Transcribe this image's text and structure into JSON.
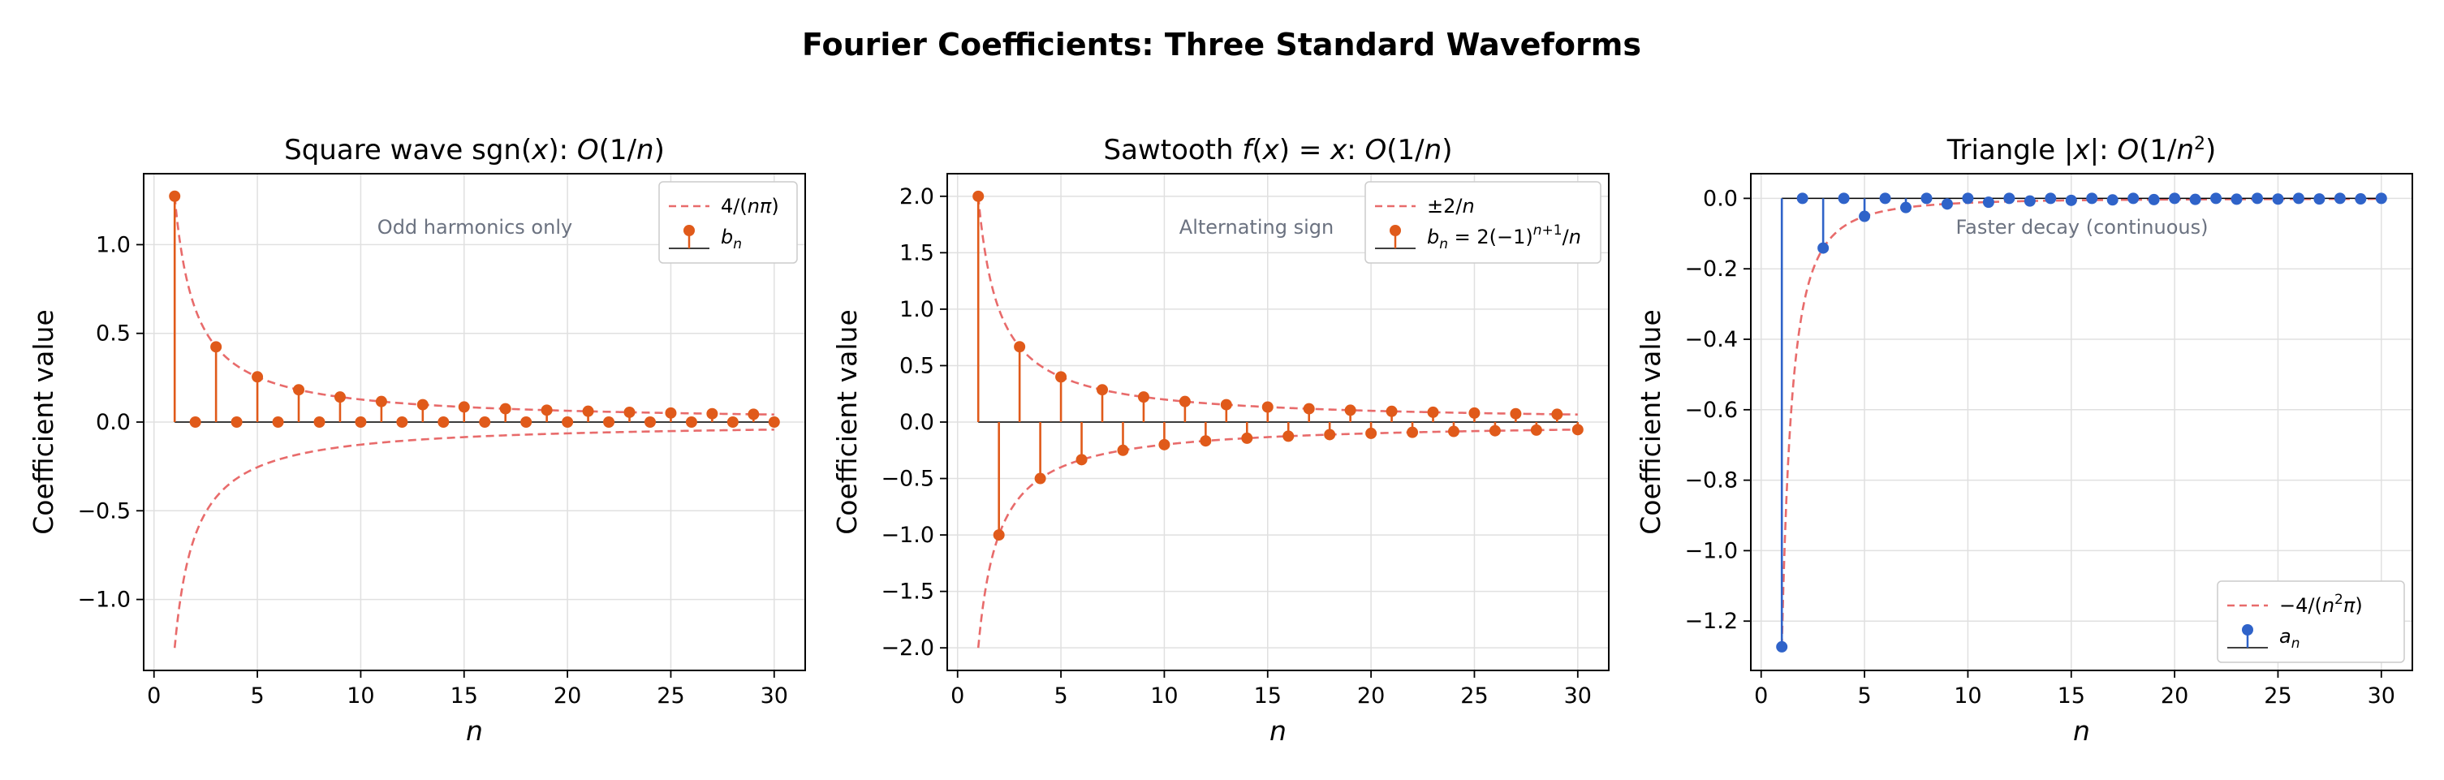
{
  "figure_title": "Fourier Coefficients: Three Standard Waveforms",
  "colors": {
    "stem_orange": "#e05a1a",
    "stem_blue": "#2f63c9",
    "envelope": "#e86b6b",
    "grid": "#e0e0e0",
    "annotation": "#6b7280"
  },
  "chart_data": [
    {
      "type": "stem",
      "title": "Square wave sgn(x): O(1/n)",
      "xlabel": "n",
      "ylabel": "Coefficient value",
      "xlim": [
        -0.5,
        31.5
      ],
      "ylim": [
        -1.4,
        1.4
      ],
      "xticks": [
        0,
        5,
        10,
        15,
        20,
        25,
        30
      ],
      "yticks": [
        -1.0,
        -0.5,
        0.0,
        0.5,
        1.0
      ],
      "ytick_labels": [
        "−1.0",
        "−0.5",
        "0.0",
        "0.5",
        "1.0"
      ],
      "grid": true,
      "annotation": "Odd harmonics only",
      "legend_position": "upper right",
      "envelope": {
        "name": "4/(nπ)",
        "formula": "4/(n·π)",
        "both_signs": true
      },
      "stems": {
        "name": "b_n",
        "x": [
          1,
          2,
          3,
          4,
          5,
          6,
          7,
          8,
          9,
          10,
          11,
          12,
          13,
          14,
          15,
          16,
          17,
          18,
          19,
          20,
          21,
          22,
          23,
          24,
          25,
          26,
          27,
          28,
          29,
          30
        ],
        "y": [
          1.273,
          0,
          0.424,
          0,
          0.255,
          0,
          0.182,
          0,
          0.141,
          0,
          0.116,
          0,
          0.098,
          0,
          0.085,
          0,
          0.075,
          0,
          0.067,
          0,
          0.061,
          0,
          0.055,
          0,
          0.051,
          0,
          0.047,
          0,
          0.044,
          0
        ]
      }
    },
    {
      "type": "stem",
      "title": "Sawtooth f(x) = x: O(1/n)",
      "xlabel": "n",
      "ylabel": "Coefficient value",
      "xlim": [
        -0.5,
        31.5
      ],
      "ylim": [
        -2.2,
        2.2
      ],
      "xticks": [
        0,
        5,
        10,
        15,
        20,
        25,
        30
      ],
      "yticks": [
        -2.0,
        -1.5,
        -1.0,
        -0.5,
        0.0,
        0.5,
        1.0,
        1.5,
        2.0
      ],
      "ytick_labels": [
        "−2.0",
        "−1.5",
        "−1.0",
        "−0.5",
        "0.0",
        "0.5",
        "1.0",
        "1.5",
        "2.0"
      ],
      "grid": true,
      "annotation": "Alternating sign",
      "legend_position": "upper right",
      "envelope": {
        "name": "±2/n",
        "formula": "2/n",
        "both_signs": true
      },
      "stems": {
        "name": "b_n = 2(−1)^(n+1)/n",
        "x": [
          1,
          2,
          3,
          4,
          5,
          6,
          7,
          8,
          9,
          10,
          11,
          12,
          13,
          14,
          15,
          16,
          17,
          18,
          19,
          20,
          21,
          22,
          23,
          24,
          25,
          26,
          27,
          28,
          29,
          30
        ],
        "y": [
          2.0,
          -1.0,
          0.667,
          -0.5,
          0.4,
          -0.333,
          0.286,
          -0.25,
          0.222,
          -0.2,
          0.182,
          -0.167,
          0.154,
          -0.143,
          0.133,
          -0.125,
          0.118,
          -0.111,
          0.105,
          -0.1,
          0.095,
          -0.091,
          0.087,
          -0.083,
          0.08,
          -0.077,
          0.074,
          -0.071,
          0.069,
          -0.067
        ]
      }
    },
    {
      "type": "stem",
      "title": "Triangle |x|: O(1/n²)",
      "xlabel": "n",
      "ylabel": "Coefficient value",
      "xlim": [
        -0.5,
        31.5
      ],
      "ylim": [
        -1.34,
        0.07
      ],
      "xticks": [
        0,
        5,
        10,
        15,
        20,
        25,
        30
      ],
      "yticks": [
        -1.2,
        -1.0,
        -0.8,
        -0.6,
        -0.4,
        -0.2,
        0.0
      ],
      "ytick_labels": [
        "−1.2",
        "−1.0",
        "−0.8",
        "−0.6",
        "−0.4",
        "−0.2",
        "0.0"
      ],
      "grid": true,
      "annotation": "Faster decay (continuous)",
      "legend_position": "lower right",
      "envelope": {
        "name": "−4/(n²π)",
        "formula": "-4/(n²·π)",
        "both_signs": false
      },
      "stems": {
        "name": "a_n",
        "x": [
          1,
          2,
          3,
          4,
          5,
          6,
          7,
          8,
          9,
          10,
          11,
          12,
          13,
          14,
          15,
          16,
          17,
          18,
          19,
          20,
          21,
          22,
          23,
          24,
          25,
          26,
          27,
          28,
          29,
          30
        ],
        "y": [
          -1.273,
          0,
          -0.141,
          0,
          -0.051,
          0,
          -0.026,
          0,
          -0.016,
          0,
          -0.011,
          0,
          -0.0075,
          0,
          -0.0057,
          0,
          -0.0044,
          0,
          -0.0035,
          0,
          -0.0029,
          0,
          -0.0024,
          0,
          -0.002,
          0,
          -0.0017,
          0,
          -0.0015,
          0
        ]
      }
    }
  ]
}
